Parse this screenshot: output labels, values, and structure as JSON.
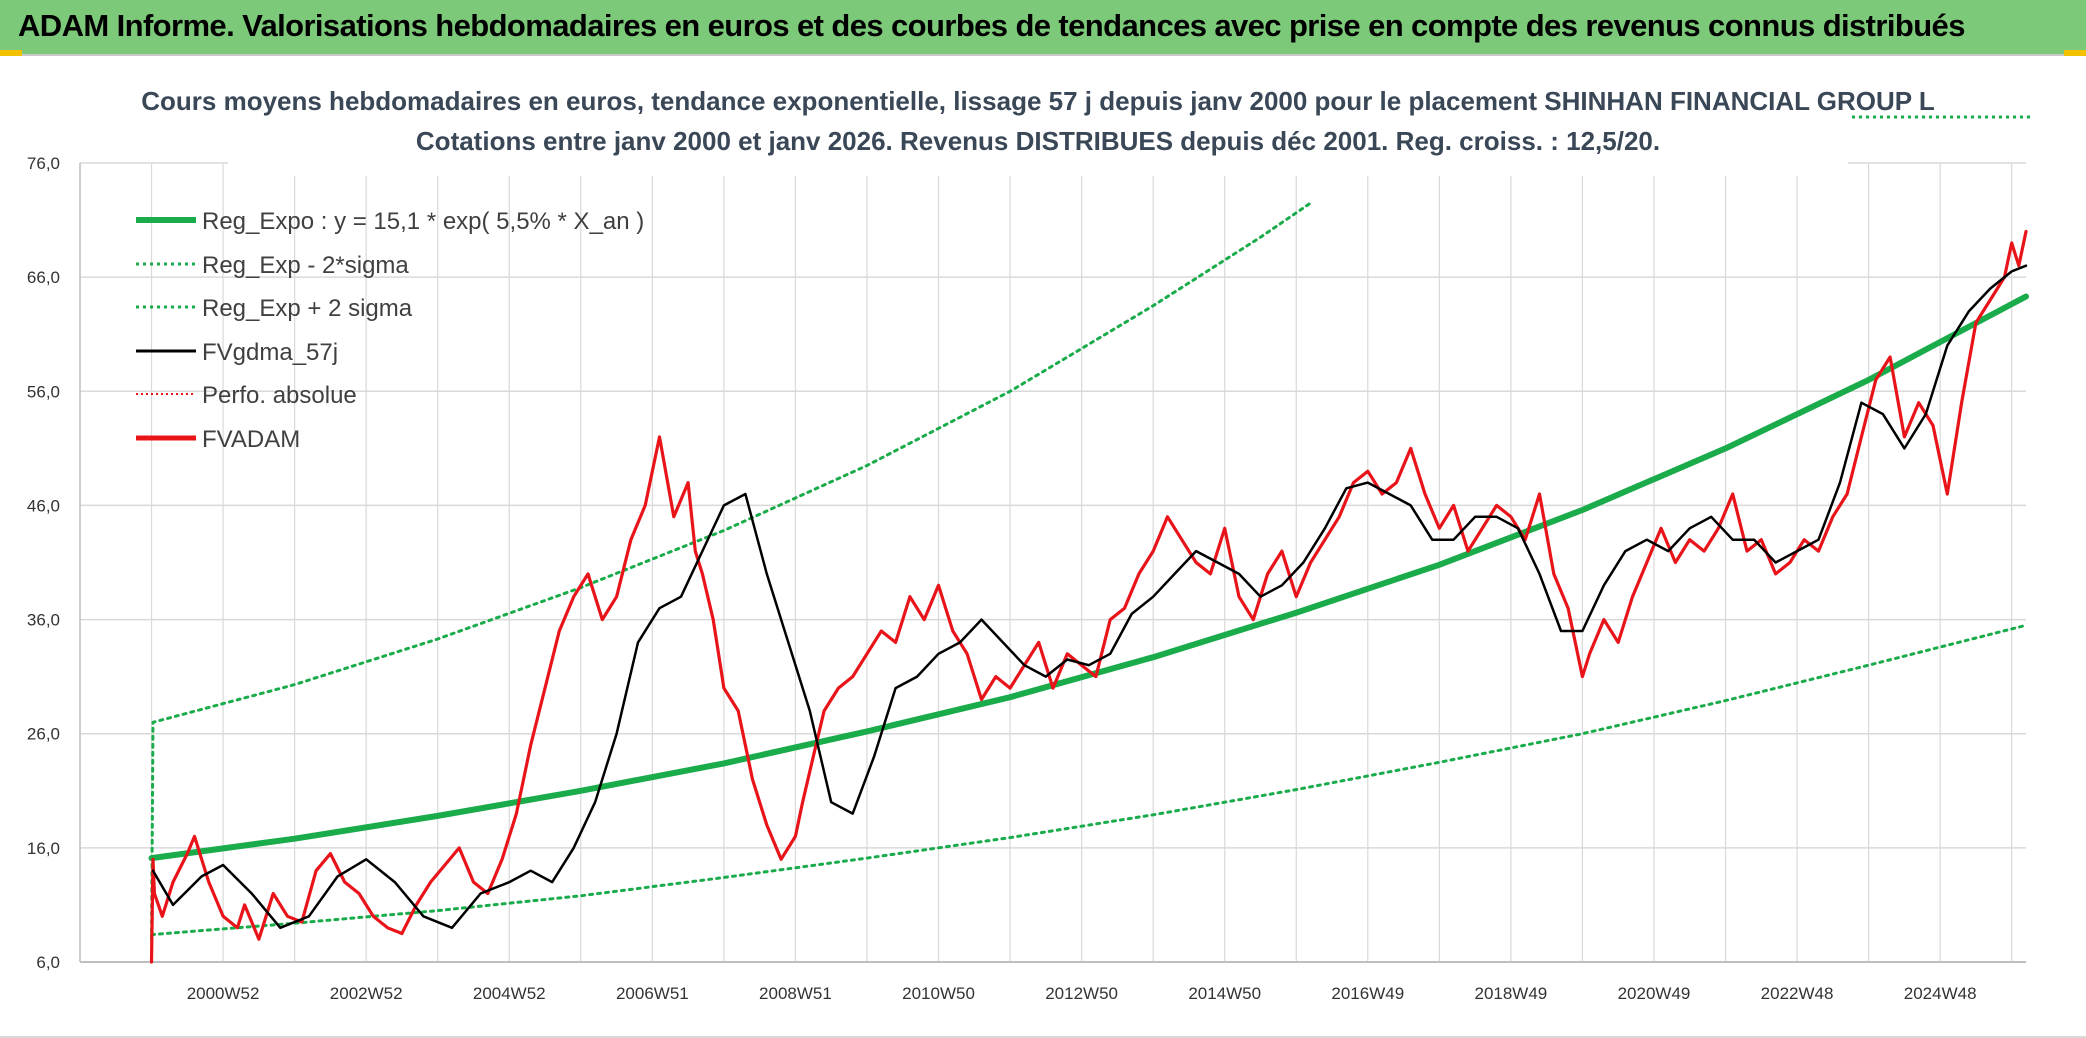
{
  "banner": {
    "title": "ADAM Informe. Valorisations hebdomadaires en euros et des courbes de tendances avec prise en compte des revenus connus distribués"
  },
  "colors": {
    "banner_bg": "#7dc97a",
    "green": "#1aab4a",
    "red": "#e8141a",
    "black": "#000000",
    "grid": "#d9d9d9",
    "accent_corner": "#f2c100"
  },
  "chart_data": {
    "type": "line",
    "title_lines": [
      "Cours moyens hebdomadaires en euros, tendance exponentielle, lissage 57 j depuis janv 2000 pour le placement SHINHAN FINANCIAL GROUP L",
      "Cotations entre janv 2000 et janv 2026. Revenus DISTRIBUES depuis déc 2001. Reg. croiss. : 12,5/20."
    ],
    "x_range": [
      1999.0,
      2026.2
    ],
    "ylim": [
      6,
      76
    ],
    "y_ticks": [
      "6,0",
      "16,0",
      "26,0",
      "36,0",
      "46,0",
      "56,0",
      "66,0",
      "76,0"
    ],
    "y_tick_values": [
      6,
      16,
      26,
      36,
      46,
      56,
      66,
      76
    ],
    "x_tick_labels": [
      "2000W52",
      "2002W52",
      "2004W52",
      "2006W51",
      "2008W51",
      "2010W50",
      "2012W50",
      "2014W50",
      "2016W49",
      "2018W49",
      "2020W49",
      "2022W48",
      "2024W48"
    ],
    "x_tick_positions": [
      2001.0,
      2003.0,
      2005.0,
      2007.0,
      2009.0,
      2011.0,
      2013.0,
      2015.0,
      2017.0,
      2019.0,
      2021.0,
      2023.0,
      2025.0
    ],
    "legend": [
      {
        "label": "Reg_Expo : y = 15,1 * exp( 5,5% *  X_an )",
        "style": "thick-green"
      },
      {
        "label": "Reg_Exp - 2*sigma",
        "style": "dotted-green"
      },
      {
        "label": "Reg_Exp + 2 sigma",
        "style": "dotted-green"
      },
      {
        "label": "FVgdma_57j",
        "style": "black"
      },
      {
        "label": "Perfo. absolue",
        "style": "dotted-red"
      },
      {
        "label": "FVADAM",
        "style": "red"
      }
    ],
    "series": [
      {
        "name": "Reg_Expo",
        "x": [
          2000.0,
          2002.0,
          2004.0,
          2006.0,
          2008.0,
          2010.0,
          2012.0,
          2014.0,
          2016.0,
          2018.0,
          2020.0,
          2022.0,
          2024.0,
          2026.2
        ],
        "values": [
          15.1,
          16.8,
          18.8,
          21.0,
          23.4,
          26.2,
          29.2,
          32.7,
          36.6,
          40.8,
          45.6,
          51.0,
          57.0,
          64.3
        ]
      },
      {
        "name": "Reg_Exp - 2*sigma",
        "x": [
          2000.0,
          2002.0,
          2004.0,
          2006.0,
          2008.0,
          2010.0,
          2012.0,
          2014.0,
          2016.0,
          2018.0,
          2020.0,
          2022.0,
          2024.0,
          2026.2
        ],
        "values": [
          8.4,
          9.4,
          10.5,
          11.8,
          13.4,
          15.1,
          16.9,
          18.9,
          21.1,
          23.5,
          26.0,
          28.9,
          32.0,
          35.5
        ]
      },
      {
        "name": "Reg_Exp + 2 sigma",
        "x": [
          2000.0,
          2000.02,
          2002.0,
          2004.0,
          2006.0,
          2008.0,
          2010.0,
          2012.0,
          2014.0,
          2015.5,
          2016.2
        ],
        "values": [
          8.0,
          27.0,
          30.3,
          34.3,
          38.8,
          43.8,
          49.5,
          56.0,
          63.5,
          69.5,
          72.5
        ]
      },
      {
        "name": "FVgdma_57j",
        "x": [
          2000.02,
          2000.3,
          2000.7,
          2001.0,
          2001.4,
          2001.8,
          2002.2,
          2002.6,
          2003.0,
          2003.4,
          2003.8,
          2004.2,
          2004.6,
          2005.0,
          2005.3,
          2005.6,
          2005.9,
          2006.2,
          2006.5,
          2006.8,
          2007.1,
          2007.4,
          2007.7,
          2008.0,
          2008.3,
          2008.6,
          2008.9,
          2009.2,
          2009.5,
          2009.8,
          2010.1,
          2010.4,
          2010.7,
          2011.0,
          2011.3,
          2011.6,
          2011.9,
          2012.2,
          2012.5,
          2012.8,
          2013.1,
          2013.4,
          2013.7,
          2014.0,
          2014.3,
          2014.6,
          2014.9,
          2015.2,
          2015.5,
          2015.8,
          2016.1,
          2016.4,
          2016.7,
          2017.0,
          2017.3,
          2017.6,
          2017.9,
          2018.2,
          2018.5,
          2018.8,
          2019.1,
          2019.4,
          2019.7,
          2020.0,
          2020.3,
          2020.6,
          2020.9,
          2021.2,
          2021.5,
          2021.8,
          2022.1,
          2022.4,
          2022.7,
          2023.0,
          2023.3,
          2023.6,
          2023.9,
          2024.2,
          2024.5,
          2024.8,
          2025.1,
          2025.4,
          2025.7,
          2026.0,
          2026.2
        ],
        "values": [
          14.0,
          11.0,
          13.5,
          14.5,
          12.0,
          9.0,
          10.0,
          13.5,
          15.0,
          13.0,
          10.0,
          9.0,
          12.0,
          13.0,
          14.0,
          13.0,
          16.0,
          20.0,
          26.0,
          34.0,
          37.0,
          38.0,
          42.0,
          46.0,
          47.0,
          40.0,
          34.0,
          28.0,
          20.0,
          19.0,
          24.0,
          30.0,
          31.0,
          33.0,
          34.0,
          36.0,
          34.0,
          32.0,
          31.0,
          32.5,
          32.0,
          33.0,
          36.5,
          38.0,
          40.0,
          42.0,
          41.0,
          40.0,
          38.0,
          39.0,
          41.0,
          44.0,
          47.5,
          48.0,
          47.0,
          46.0,
          43.0,
          43.0,
          45.0,
          45.0,
          44.0,
          40.0,
          35.0,
          35.0,
          39.0,
          42.0,
          43.0,
          42.0,
          44.0,
          45.0,
          43.0,
          43.0,
          41.0,
          42.0,
          43.0,
          48.0,
          55.0,
          54.0,
          51.0,
          54.0,
          60.0,
          63.0,
          65.0,
          66.5,
          67.0
        ],
        "color": "#000000"
      },
      {
        "name": "FVADAM",
        "x": [
          2000.0,
          2000.02,
          2000.04,
          2000.15,
          2000.3,
          2000.5,
          2000.6,
          2000.8,
          2001.0,
          2001.2,
          2001.3,
          2001.5,
          2001.7,
          2001.9,
          2002.1,
          2002.3,
          2002.5,
          2002.7,
          2002.9,
          2003.1,
          2003.3,
          2003.5,
          2003.7,
          2003.9,
          2004.1,
          2004.3,
          2004.5,
          2004.7,
          2004.9,
          2005.1,
          2005.3,
          2005.5,
          2005.7,
          2005.9,
          2006.1,
          2006.3,
          2006.5,
          2006.7,
          2006.9,
          2007.1,
          2007.3,
          2007.5,
          2007.6,
          2007.7,
          2007.85,
          2008.0,
          2008.2,
          2008.4,
          2008.6,
          2008.8,
          2009.0,
          2009.1,
          2009.25,
          2009.4,
          2009.6,
          2009.8,
          2010.0,
          2010.2,
          2010.4,
          2010.6,
          2010.8,
          2011.0,
          2011.2,
          2011.4,
          2011.6,
          2011.8,
          2012.0,
          2012.2,
          2012.4,
          2012.6,
          2012.8,
          2013.0,
          2013.2,
          2013.4,
          2013.6,
          2013.8,
          2014.0,
          2014.2,
          2014.4,
          2014.6,
          2014.8,
          2015.0,
          2015.2,
          2015.4,
          2015.6,
          2015.8,
          2016.0,
          2016.2,
          2016.4,
          2016.6,
          2016.8,
          2017.0,
          2017.2,
          2017.4,
          2017.6,
          2017.8,
          2018.0,
          2018.2,
          2018.4,
          2018.6,
          2018.8,
          2019.0,
          2019.2,
          2019.4,
          2019.6,
          2019.8,
          2020.0,
          2020.1,
          2020.3,
          2020.5,
          2020.7,
          2020.9,
          2021.1,
          2021.3,
          2021.5,
          2021.7,
          2021.9,
          2022.1,
          2022.3,
          2022.5,
          2022.7,
          2022.9,
          2023.1,
          2023.3,
          2023.5,
          2023.7,
          2023.9,
          2024.1,
          2024.3,
          2024.5,
          2024.7,
          2024.9,
          2025.1,
          2025.3,
          2025.5,
          2025.7,
          2025.9,
          2026.0,
          2026.1,
          2026.2
        ],
        "values": [
          6.0,
          15.0,
          12.0,
          10.0,
          13.0,
          15.5,
          17.0,
          13.0,
          10.0,
          9.0,
          11.0,
          8.0,
          12.0,
          10.0,
          9.5,
          14.0,
          15.5,
          13.0,
          12.0,
          10.0,
          9.0,
          8.5,
          11.0,
          13.0,
          14.5,
          16.0,
          13.0,
          12.0,
          15.0,
          19.0,
          25.0,
          30.0,
          35.0,
          38.0,
          40.0,
          36.0,
          38.0,
          43.0,
          46.0,
          52.0,
          45.0,
          48.0,
          42.0,
          40.0,
          36.0,
          30.0,
          28.0,
          22.0,
          18.0,
          15.0,
          17.0,
          20.0,
          24.0,
          28.0,
          30.0,
          31.0,
          33.0,
          35.0,
          34.0,
          38.0,
          36.0,
          39.0,
          35.0,
          33.0,
          29.0,
          31.0,
          30.0,
          32.0,
          34.0,
          30.0,
          33.0,
          32.0,
          31.0,
          36.0,
          37.0,
          40.0,
          42.0,
          45.0,
          43.0,
          41.0,
          40.0,
          44.0,
          38.0,
          36.0,
          40.0,
          42.0,
          38.0,
          41.0,
          43.0,
          45.0,
          48.0,
          49.0,
          47.0,
          48.0,
          51.0,
          47.0,
          44.0,
          46.0,
          42.0,
          44.0,
          46.0,
          45.0,
          43.0,
          47.0,
          40.0,
          37.0,
          31.0,
          33.0,
          36.0,
          34.0,
          38.0,
          41.0,
          44.0,
          41.0,
          43.0,
          42.0,
          44.0,
          47.0,
          42.0,
          43.0,
          40.0,
          41.0,
          43.0,
          42.0,
          45.0,
          47.0,
          52.0,
          57.0,
          59.0,
          52.0,
          55.0,
          53.0,
          47.0,
          55.0,
          62.0,
          64.0,
          66.0,
          69.0,
          67.0,
          70.0
        ],
        "color": "#e8141a"
      }
    ]
  }
}
